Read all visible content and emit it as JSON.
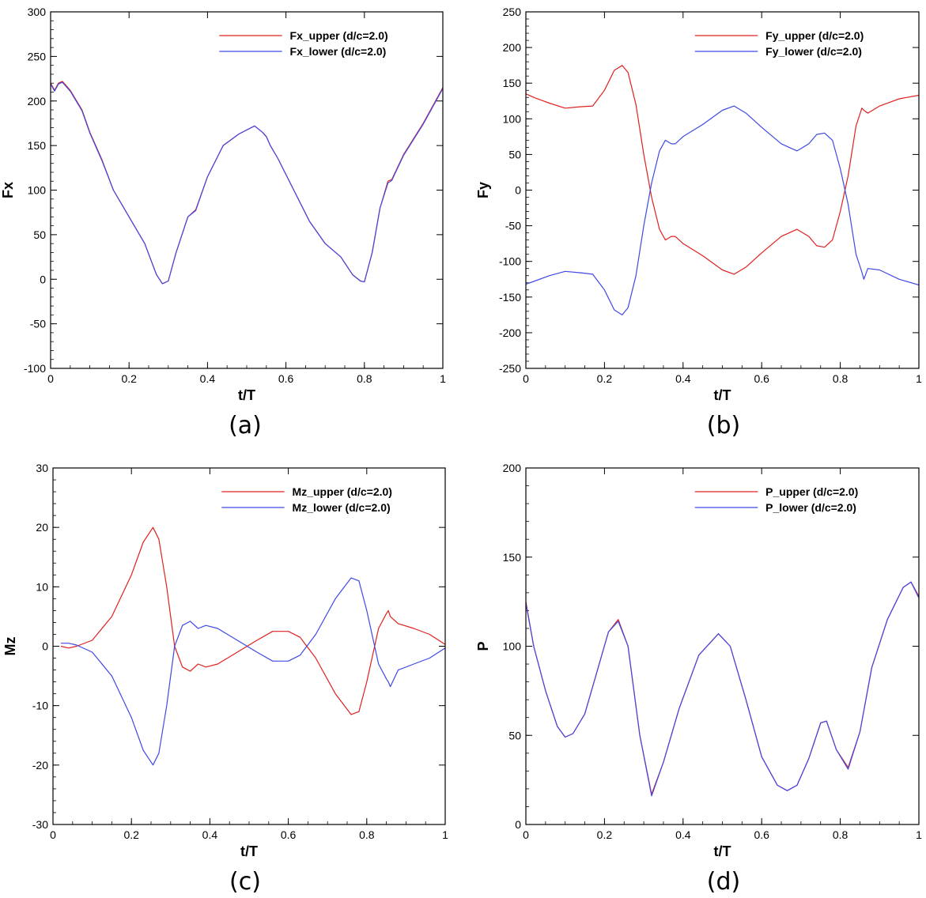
{
  "chart_data": [
    {
      "type": "line",
      "caption": "(a)",
      "xlabel": "t/T",
      "ylabel": "Fx",
      "xlim": [
        0,
        1
      ],
      "ylim": [
        -100,
        300
      ],
      "xticks": [
        "0",
        "0.2",
        "0.4",
        "0.6",
        "0.8",
        "1"
      ],
      "yticks": [
        "-100",
        "-50",
        "0",
        "50",
        "100",
        "150",
        "200",
        "250",
        "300"
      ],
      "legend_position": "top-right",
      "series": [
        {
          "name": "Fx_upper (d/c=2.0)",
          "color": "#e0201f",
          "x": [
            0,
            0.01,
            0.02,
            0.03,
            0.05,
            0.08,
            0.1,
            0.13,
            0.16,
            0.2,
            0.24,
            0.27,
            0.285,
            0.3,
            0.32,
            0.35,
            0.37,
            0.4,
            0.44,
            0.48,
            0.52,
            0.54,
            0.55,
            0.56,
            0.58,
            0.62,
            0.66,
            0.7,
            0.74,
            0.77,
            0.79,
            0.8,
            0.82,
            0.84,
            0.86,
            0.87,
            0.9,
            0.95,
            1.0
          ],
          "y": [
            220,
            212,
            220,
            222,
            212,
            190,
            165,
            135,
            100,
            70,
            40,
            5,
            -5,
            -2,
            30,
            70,
            78,
            115,
            150,
            163,
            172,
            165,
            160,
            150,
            135,
            100,
            65,
            40,
            25,
            5,
            -2,
            -3,
            30,
            80,
            110,
            112,
            140,
            175,
            215
          ]
        },
        {
          "name": "Fx_lower (d/c=2.0)",
          "color": "#3f49e6",
          "x": [
            0,
            0.01,
            0.02,
            0.03,
            0.05,
            0.08,
            0.1,
            0.13,
            0.16,
            0.2,
            0.24,
            0.27,
            0.285,
            0.3,
            0.32,
            0.35,
            0.37,
            0.4,
            0.44,
            0.48,
            0.52,
            0.54,
            0.55,
            0.56,
            0.58,
            0.62,
            0.66,
            0.7,
            0.74,
            0.77,
            0.79,
            0.8,
            0.82,
            0.84,
            0.86,
            0.87,
            0.9,
            0.95,
            1.0
          ],
          "y": [
            219,
            211,
            219,
            221,
            211,
            189,
            164,
            134,
            100,
            70,
            40,
            5,
            -5,
            -2,
            30,
            70,
            77,
            115,
            150,
            163,
            172,
            165,
            160,
            150,
            135,
            100,
            65,
            40,
            25,
            5,
            -2,
            -3,
            30,
            80,
            108,
            111,
            139,
            174,
            214
          ]
        }
      ]
    },
    {
      "type": "line",
      "caption": "(b)",
      "xlabel": "t/T",
      "ylabel": "Fy",
      "xlim": [
        0,
        1
      ],
      "ylim": [
        -250,
        250
      ],
      "xticks": [
        "0",
        "0.2",
        "0.4",
        "0.6",
        "0.8",
        "1"
      ],
      "yticks": [
        "-250",
        "-200",
        "-150",
        "-100",
        "-50",
        "0",
        "50",
        "100",
        "150",
        "200",
        "250"
      ],
      "legend_position": "top-right",
      "series": [
        {
          "name": "Fy_upper (d/c=2.0)",
          "color": "#e0201f",
          "x": [
            0,
            0.02,
            0.06,
            0.1,
            0.14,
            0.17,
            0.2,
            0.225,
            0.245,
            0.26,
            0.28,
            0.3,
            0.32,
            0.34,
            0.355,
            0.37,
            0.38,
            0.4,
            0.45,
            0.5,
            0.53,
            0.56,
            0.6,
            0.65,
            0.69,
            0.72,
            0.74,
            0.76,
            0.78,
            0.8,
            0.82,
            0.84,
            0.855,
            0.86,
            0.87,
            0.9,
            0.95,
            1.0
          ],
          "y": [
            135,
            130,
            122,
            115,
            117,
            118,
            140,
            168,
            175,
            165,
            120,
            50,
            -10,
            -55,
            -70,
            -65,
            -65,
            -75,
            -92,
            -112,
            -118,
            -108,
            -88,
            -65,
            -55,
            -65,
            -78,
            -80,
            -70,
            -30,
            20,
            90,
            115,
            112,
            108,
            118,
            128,
            133
          ]
        },
        {
          "name": "Fy_lower (d/c=2.0)",
          "color": "#3f49e6",
          "x": [
            0,
            0.02,
            0.06,
            0.1,
            0.14,
            0.17,
            0.2,
            0.225,
            0.245,
            0.26,
            0.28,
            0.3,
            0.32,
            0.34,
            0.355,
            0.37,
            0.38,
            0.4,
            0.45,
            0.5,
            0.53,
            0.56,
            0.6,
            0.65,
            0.69,
            0.72,
            0.74,
            0.76,
            0.78,
            0.8,
            0.82,
            0.84,
            0.855,
            0.86,
            0.87,
            0.9,
            0.95,
            1.0
          ],
          "y": [
            -132,
            -128,
            -120,
            -114,
            -116,
            -118,
            -140,
            -168,
            -175,
            -165,
            -120,
            -50,
            10,
            55,
            70,
            65,
            65,
            75,
            92,
            112,
            118,
            108,
            88,
            65,
            55,
            65,
            78,
            80,
            70,
            30,
            -20,
            -90,
            -115,
            -125,
            -110,
            -112,
            -125,
            -133
          ]
        }
      ]
    },
    {
      "type": "line",
      "caption": "(c)",
      "xlabel": "t/T",
      "ylabel": "Mz",
      "xlim": [
        0,
        1
      ],
      "ylim": [
        -30,
        30
      ],
      "xticks": [
        "0",
        "0.2",
        "0.4",
        "0.6",
        "0.8",
        "1"
      ],
      "yticks": [
        "-30",
        "-20",
        "-10",
        "0",
        "10",
        "20",
        "30"
      ],
      "legend_position": "top-right",
      "series": [
        {
          "name": "Mz_upper (d/c=2.0)",
          "color": "#e0201f",
          "x": [
            0.02,
            0.04,
            0.06,
            0.1,
            0.15,
            0.2,
            0.23,
            0.255,
            0.27,
            0.29,
            0.31,
            0.33,
            0.35,
            0.37,
            0.39,
            0.42,
            0.47,
            0.52,
            0.56,
            0.6,
            0.63,
            0.67,
            0.72,
            0.76,
            0.78,
            0.8,
            0.83,
            0.85,
            0.855,
            0.86,
            0.88,
            0.92,
            0.96,
            1.0
          ],
          "y": [
            0,
            -0.3,
            0,
            1,
            5,
            12,
            17.5,
            20,
            18,
            10,
            0,
            -3.5,
            -4.2,
            -3,
            -3.5,
            -3,
            -1,
            1,
            2.5,
            2.5,
            1.5,
            -2,
            -8,
            -11.5,
            -11,
            -6,
            3,
            5.5,
            6,
            5,
            3.8,
            3,
            2,
            0.3
          ]
        },
        {
          "name": "Mz_lower (d/c=2.0)",
          "color": "#3f49e6",
          "x": [
            0.02,
            0.04,
            0.06,
            0.1,
            0.15,
            0.2,
            0.23,
            0.255,
            0.27,
            0.29,
            0.31,
            0.33,
            0.35,
            0.37,
            0.39,
            0.42,
            0.47,
            0.52,
            0.56,
            0.6,
            0.63,
            0.67,
            0.72,
            0.76,
            0.78,
            0.8,
            0.83,
            0.85,
            0.855,
            0.86,
            0.88,
            0.92,
            0.96,
            1.0
          ],
          "y": [
            0.5,
            0.5,
            0.2,
            -1,
            -5,
            -12,
            -17.5,
            -20,
            -18,
            -10,
            0,
            3.5,
            4.2,
            3,
            3.5,
            3,
            1,
            -1,
            -2.5,
            -2.5,
            -1.5,
            2,
            8,
            11.5,
            11,
            6,
            -3,
            -5.5,
            -6,
            -6.8,
            -4,
            -3,
            -2,
            -0.3
          ]
        }
      ]
    },
    {
      "type": "line",
      "caption": "(d)",
      "xlabel": "t/T",
      "ylabel": "P",
      "xlim": [
        0,
        1
      ],
      "ylim": [
        0,
        200
      ],
      "xticks": [
        "0",
        "0.2",
        "0.4",
        "0.6",
        "0.8",
        "1"
      ],
      "yticks": [
        "0",
        "50",
        "100",
        "150",
        "200"
      ],
      "legend_position": "top-right",
      "series": [
        {
          "name": "P_upper (d/c=2.0)",
          "color": "#e0201f",
          "x": [
            0,
            0.02,
            0.05,
            0.08,
            0.1,
            0.12,
            0.15,
            0.18,
            0.21,
            0.235,
            0.26,
            0.29,
            0.32,
            0.35,
            0.39,
            0.44,
            0.49,
            0.52,
            0.56,
            0.6,
            0.64,
            0.665,
            0.69,
            0.72,
            0.75,
            0.765,
            0.79,
            0.82,
            0.85,
            0.88,
            0.92,
            0.96,
            0.98,
            1.0
          ],
          "y": [
            125,
            100,
            75,
            55,
            49,
            51,
            62,
            85,
            108,
            115,
            100,
            50,
            17,
            35,
            65,
            95,
            107,
            100,
            70,
            38,
            22,
            19,
            22,
            37,
            57,
            58,
            42,
            32,
            52,
            88,
            115,
            133,
            136,
            128
          ]
        },
        {
          "name": "P_lower (d/c=2.0)",
          "color": "#3f49e6",
          "x": [
            0,
            0.02,
            0.05,
            0.08,
            0.1,
            0.12,
            0.15,
            0.18,
            0.21,
            0.235,
            0.26,
            0.29,
            0.32,
            0.35,
            0.39,
            0.44,
            0.49,
            0.52,
            0.56,
            0.6,
            0.64,
            0.665,
            0.69,
            0.72,
            0.75,
            0.765,
            0.79,
            0.82,
            0.85,
            0.88,
            0.92,
            0.96,
            0.98,
            1.0
          ],
          "y": [
            124,
            100,
            75,
            55,
            49,
            51,
            62,
            85,
            108,
            114,
            100,
            50,
            16,
            35,
            65,
            95,
            107,
            100,
            70,
            38,
            22,
            19,
            22,
            37,
            57,
            58,
            42,
            31,
            52,
            88,
            115,
            133,
            136,
            127
          ]
        }
      ]
    }
  ]
}
